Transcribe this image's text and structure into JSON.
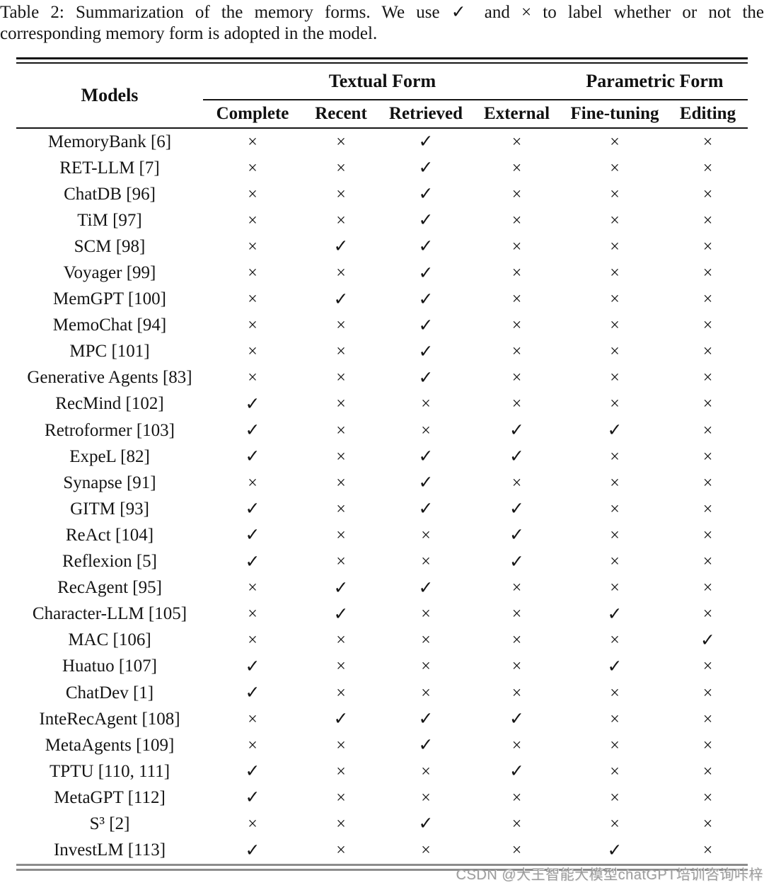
{
  "caption": {
    "line1": "Table 2: Summarization of the memory forms. We use ✓ and × to label whether or not the",
    "line2": "corresponding memory form is adopted in the model."
  },
  "table": {
    "models_header": "Models",
    "groups": [
      {
        "label": "Textual Form",
        "columns": [
          "Complete",
          "Recent",
          "Retrieved",
          "External"
        ]
      },
      {
        "label": "Parametric Form",
        "columns": [
          "Fine-tuning",
          "Editing"
        ]
      }
    ],
    "columns": [
      "Complete",
      "Recent",
      "Retrieved",
      "External",
      "Fine-tuning",
      "Editing"
    ],
    "check_glyph": "✓",
    "cross_glyph": "×",
    "rows": [
      {
        "model": "MemoryBank [6]",
        "marks": [
          "×",
          "×",
          "✓",
          "×",
          "×",
          "×"
        ]
      },
      {
        "model": "RET-LLM [7]",
        "marks": [
          "×",
          "×",
          "✓",
          "×",
          "×",
          "×"
        ]
      },
      {
        "model": "ChatDB [96]",
        "marks": [
          "×",
          "×",
          "✓",
          "×",
          "×",
          "×"
        ]
      },
      {
        "model": "TiM [97]",
        "marks": [
          "×",
          "×",
          "✓",
          "×",
          "×",
          "×"
        ]
      },
      {
        "model": "SCM [98]",
        "marks": [
          "×",
          "✓",
          "✓",
          "×",
          "×",
          "×"
        ]
      },
      {
        "model": "Voyager [99]",
        "marks": [
          "×",
          "×",
          "✓",
          "×",
          "×",
          "×"
        ]
      },
      {
        "model": "MemGPT [100]",
        "marks": [
          "×",
          "✓",
          "✓",
          "×",
          "×",
          "×"
        ]
      },
      {
        "model": "MemoChat [94]",
        "marks": [
          "×",
          "×",
          "✓",
          "×",
          "×",
          "×"
        ]
      },
      {
        "model": "MPC [101]",
        "marks": [
          "×",
          "×",
          "✓",
          "×",
          "×",
          "×"
        ]
      },
      {
        "model": "Generative Agents [83]",
        "marks": [
          "×",
          "×",
          "✓",
          "×",
          "×",
          "×"
        ]
      },
      {
        "model": "RecMind [102]",
        "marks": [
          "✓",
          "×",
          "×",
          "×",
          "×",
          "×"
        ]
      },
      {
        "model": "Retroformer [103]",
        "marks": [
          "✓",
          "×",
          "×",
          "✓",
          "✓",
          "×"
        ]
      },
      {
        "model": "ExpeL [82]",
        "marks": [
          "✓",
          "×",
          "✓",
          "✓",
          "×",
          "×"
        ]
      },
      {
        "model": "Synapse [91]",
        "marks": [
          "×",
          "×",
          "✓",
          "×",
          "×",
          "×"
        ]
      },
      {
        "model": "GITM [93]",
        "marks": [
          "✓",
          "×",
          "✓",
          "✓",
          "×",
          "×"
        ]
      },
      {
        "model": "ReAct [104]",
        "marks": [
          "✓",
          "×",
          "×",
          "✓",
          "×",
          "×"
        ]
      },
      {
        "model": "Reflexion [5]",
        "marks": [
          "✓",
          "×",
          "×",
          "✓",
          "×",
          "×"
        ]
      },
      {
        "model": "RecAgent [95]",
        "marks": [
          "×",
          "✓",
          "✓",
          "×",
          "×",
          "×"
        ]
      },
      {
        "model": "Character-LLM [105]",
        "marks": [
          "×",
          "✓",
          "×",
          "×",
          "✓",
          "×"
        ]
      },
      {
        "model": "MAC [106]",
        "marks": [
          "×",
          "×",
          "×",
          "×",
          "×",
          "✓"
        ]
      },
      {
        "model": "Huatuo [107]",
        "marks": [
          "✓",
          "×",
          "×",
          "×",
          "✓",
          "×"
        ]
      },
      {
        "model": "ChatDev [1]",
        "marks": [
          "✓",
          "×",
          "×",
          "×",
          "×",
          "×"
        ]
      },
      {
        "model": "InteRecAgent [108]",
        "marks": [
          "×",
          "✓",
          "✓",
          "✓",
          "×",
          "×"
        ]
      },
      {
        "model": "MetaAgents [109]",
        "marks": [
          "×",
          "×",
          "✓",
          "×",
          "×",
          "×"
        ]
      },
      {
        "model": "TPTU [110, 111]",
        "marks": [
          "✓",
          "×",
          "×",
          "✓",
          "×",
          "×"
        ]
      },
      {
        "model": "MetaGPT [112]",
        "marks": [
          "✓",
          "×",
          "×",
          "×",
          "×",
          "×"
        ]
      },
      {
        "model": "S³ [2]",
        "marks": [
          "×",
          "×",
          "✓",
          "×",
          "×",
          "×"
        ]
      },
      {
        "model": "InvestLM [113]",
        "marks": [
          "✓",
          "×",
          "×",
          "×",
          "✓",
          "×"
        ]
      }
    ]
  },
  "watermark": "CSDN @大王智能大模型chatGPT培训咨询咔梓",
  "colors": {
    "text": "#151515",
    "rule_black": "#161616",
    "rule_gray": "#8c8c8c",
    "watermark_gray": "#9c9c9c"
  }
}
